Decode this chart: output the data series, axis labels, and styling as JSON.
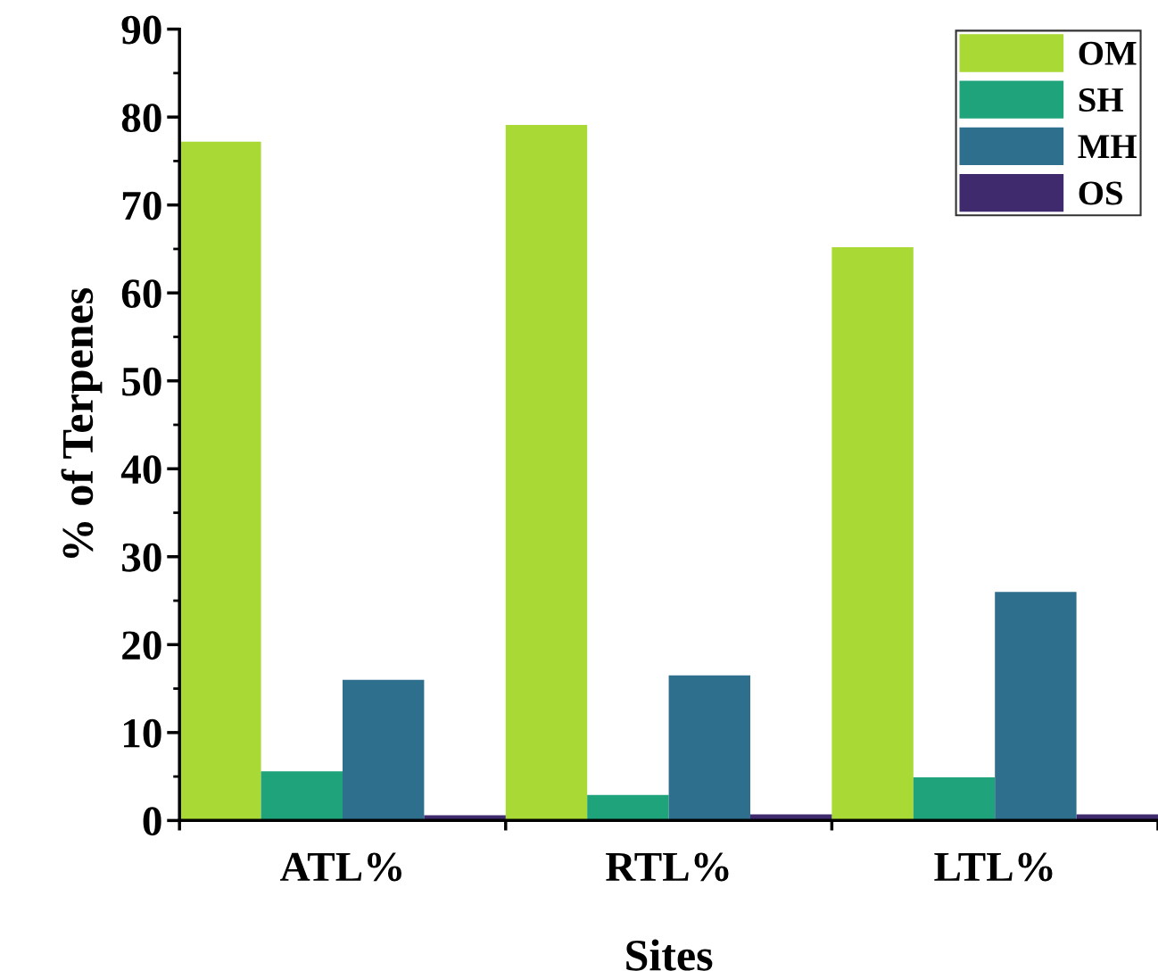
{
  "chart_data": {
    "type": "bar",
    "xlabel": "Sites",
    "ylabel": "% of Terpenes",
    "categories": [
      "ATL%",
      "RTL%",
      "LTL%"
    ],
    "series": [
      {
        "name": "OM",
        "color": "#a8d934",
        "values": [
          77.2,
          79.1,
          65.2
        ]
      },
      {
        "name": "SH",
        "color": "#1fa37a",
        "values": [
          5.6,
          2.9,
          4.9
        ]
      },
      {
        "name": "MH",
        "color": "#2f6f8e",
        "values": [
          16.0,
          16.5,
          26.0
        ]
      },
      {
        "name": "OS",
        "color": "#3f2a6e",
        "values": [
          0.6,
          0.7,
          0.7
        ]
      }
    ],
    "ylim": [
      0,
      90
    ],
    "yticks": [
      0,
      10,
      20,
      30,
      40,
      50,
      60,
      70,
      80,
      90
    ],
    "grid": false,
    "legend": "top right"
  }
}
